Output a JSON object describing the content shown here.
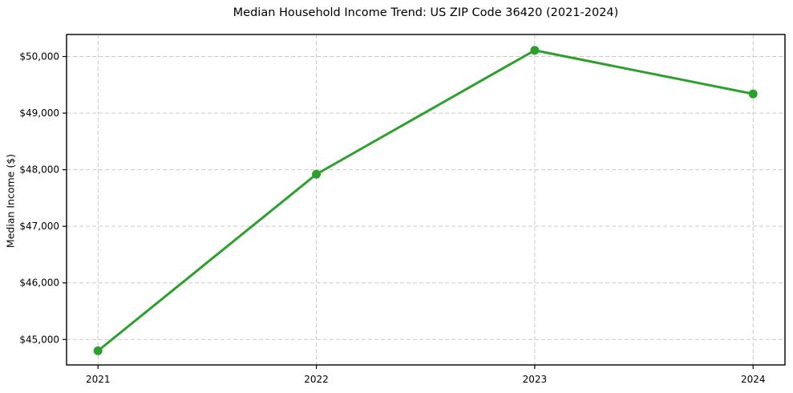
{
  "chart_data": {
    "type": "line",
    "title": "Median Household Income Trend: US ZIP Code 36420 (2021-2024)",
    "xlabel": "",
    "ylabel": "Median Income ($)",
    "x": [
      2021,
      2022,
      2023,
      2024
    ],
    "x_tick_labels": [
      "2021",
      "2022",
      "2023",
      "2024"
    ],
    "series": [
      {
        "name": "Median Household Income",
        "values": [
          44800,
          47920,
          50110,
          49340
        ]
      }
    ],
    "y_ticks": [
      45000,
      46000,
      47000,
      48000,
      49000,
      50000
    ],
    "y_tick_labels": [
      "$45,000",
      "$46,000",
      "$47,000",
      "$48,000",
      "$49,000",
      "$50,000"
    ],
    "ylim": [
      44550,
      50390
    ],
    "xlim": [
      2020.856,
      2024.146
    ],
    "grid": true,
    "grid_style": "dashed",
    "legend_position": "none",
    "colors": {
      "line": "#2ca02c",
      "marker": "#2ca02c",
      "grid": "#c9c9c9",
      "spine": "#000000",
      "text": "#000000",
      "background": "#ffffff"
    }
  }
}
